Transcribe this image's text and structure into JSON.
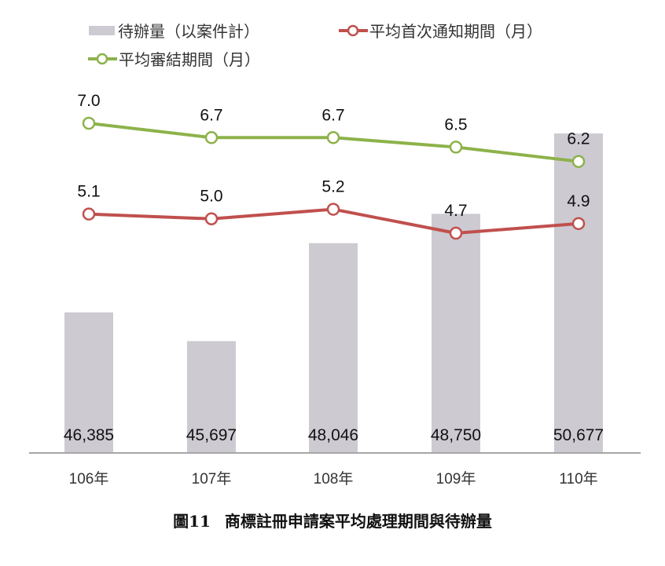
{
  "legend": {
    "bar": "待辦量（以案件計）",
    "red_line": "平均首次通知期間（月）",
    "green_line": "平均審結期間（月）"
  },
  "caption": {
    "figure_no": "圖11",
    "title": "商標註冊申請案平均處理期間與待辦量"
  },
  "colors": {
    "bar": "#cdcad2",
    "red_line": "#c0504d",
    "green_line": "#8db24a",
    "axis": "#a6a6a6"
  },
  "chart_data": {
    "type": "bar",
    "title": "圖11 商標註冊申請案平均處理期間與待辦量",
    "categories": [
      "106年",
      "107年",
      "108年",
      "109年",
      "110年"
    ],
    "series": [
      {
        "name": "待辦量（以案件計）",
        "type": "bar",
        "values": [
          46385,
          45697,
          48046,
          48750,
          50677
        ],
        "labels": [
          "46,385",
          "45,697",
          "48,046",
          "48,750",
          "50,677"
        ]
      },
      {
        "name": "平均首次通知期間（月）",
        "type": "line",
        "values": [
          5.1,
          5.0,
          5.2,
          4.7,
          4.9
        ],
        "labels": [
          "5.1",
          "5.0",
          "5.2",
          "4.7",
          "4.9"
        ]
      },
      {
        "name": "平均審結期間（月）",
        "type": "line",
        "values": [
          7.0,
          6.7,
          6.7,
          6.5,
          6.2
        ],
        "labels": [
          "7.0",
          "6.7",
          "6.7",
          "6.5",
          "6.2"
        ]
      }
    ],
    "xlabel": "",
    "ylabel": "",
    "grid": false,
    "legend_position": "top"
  }
}
